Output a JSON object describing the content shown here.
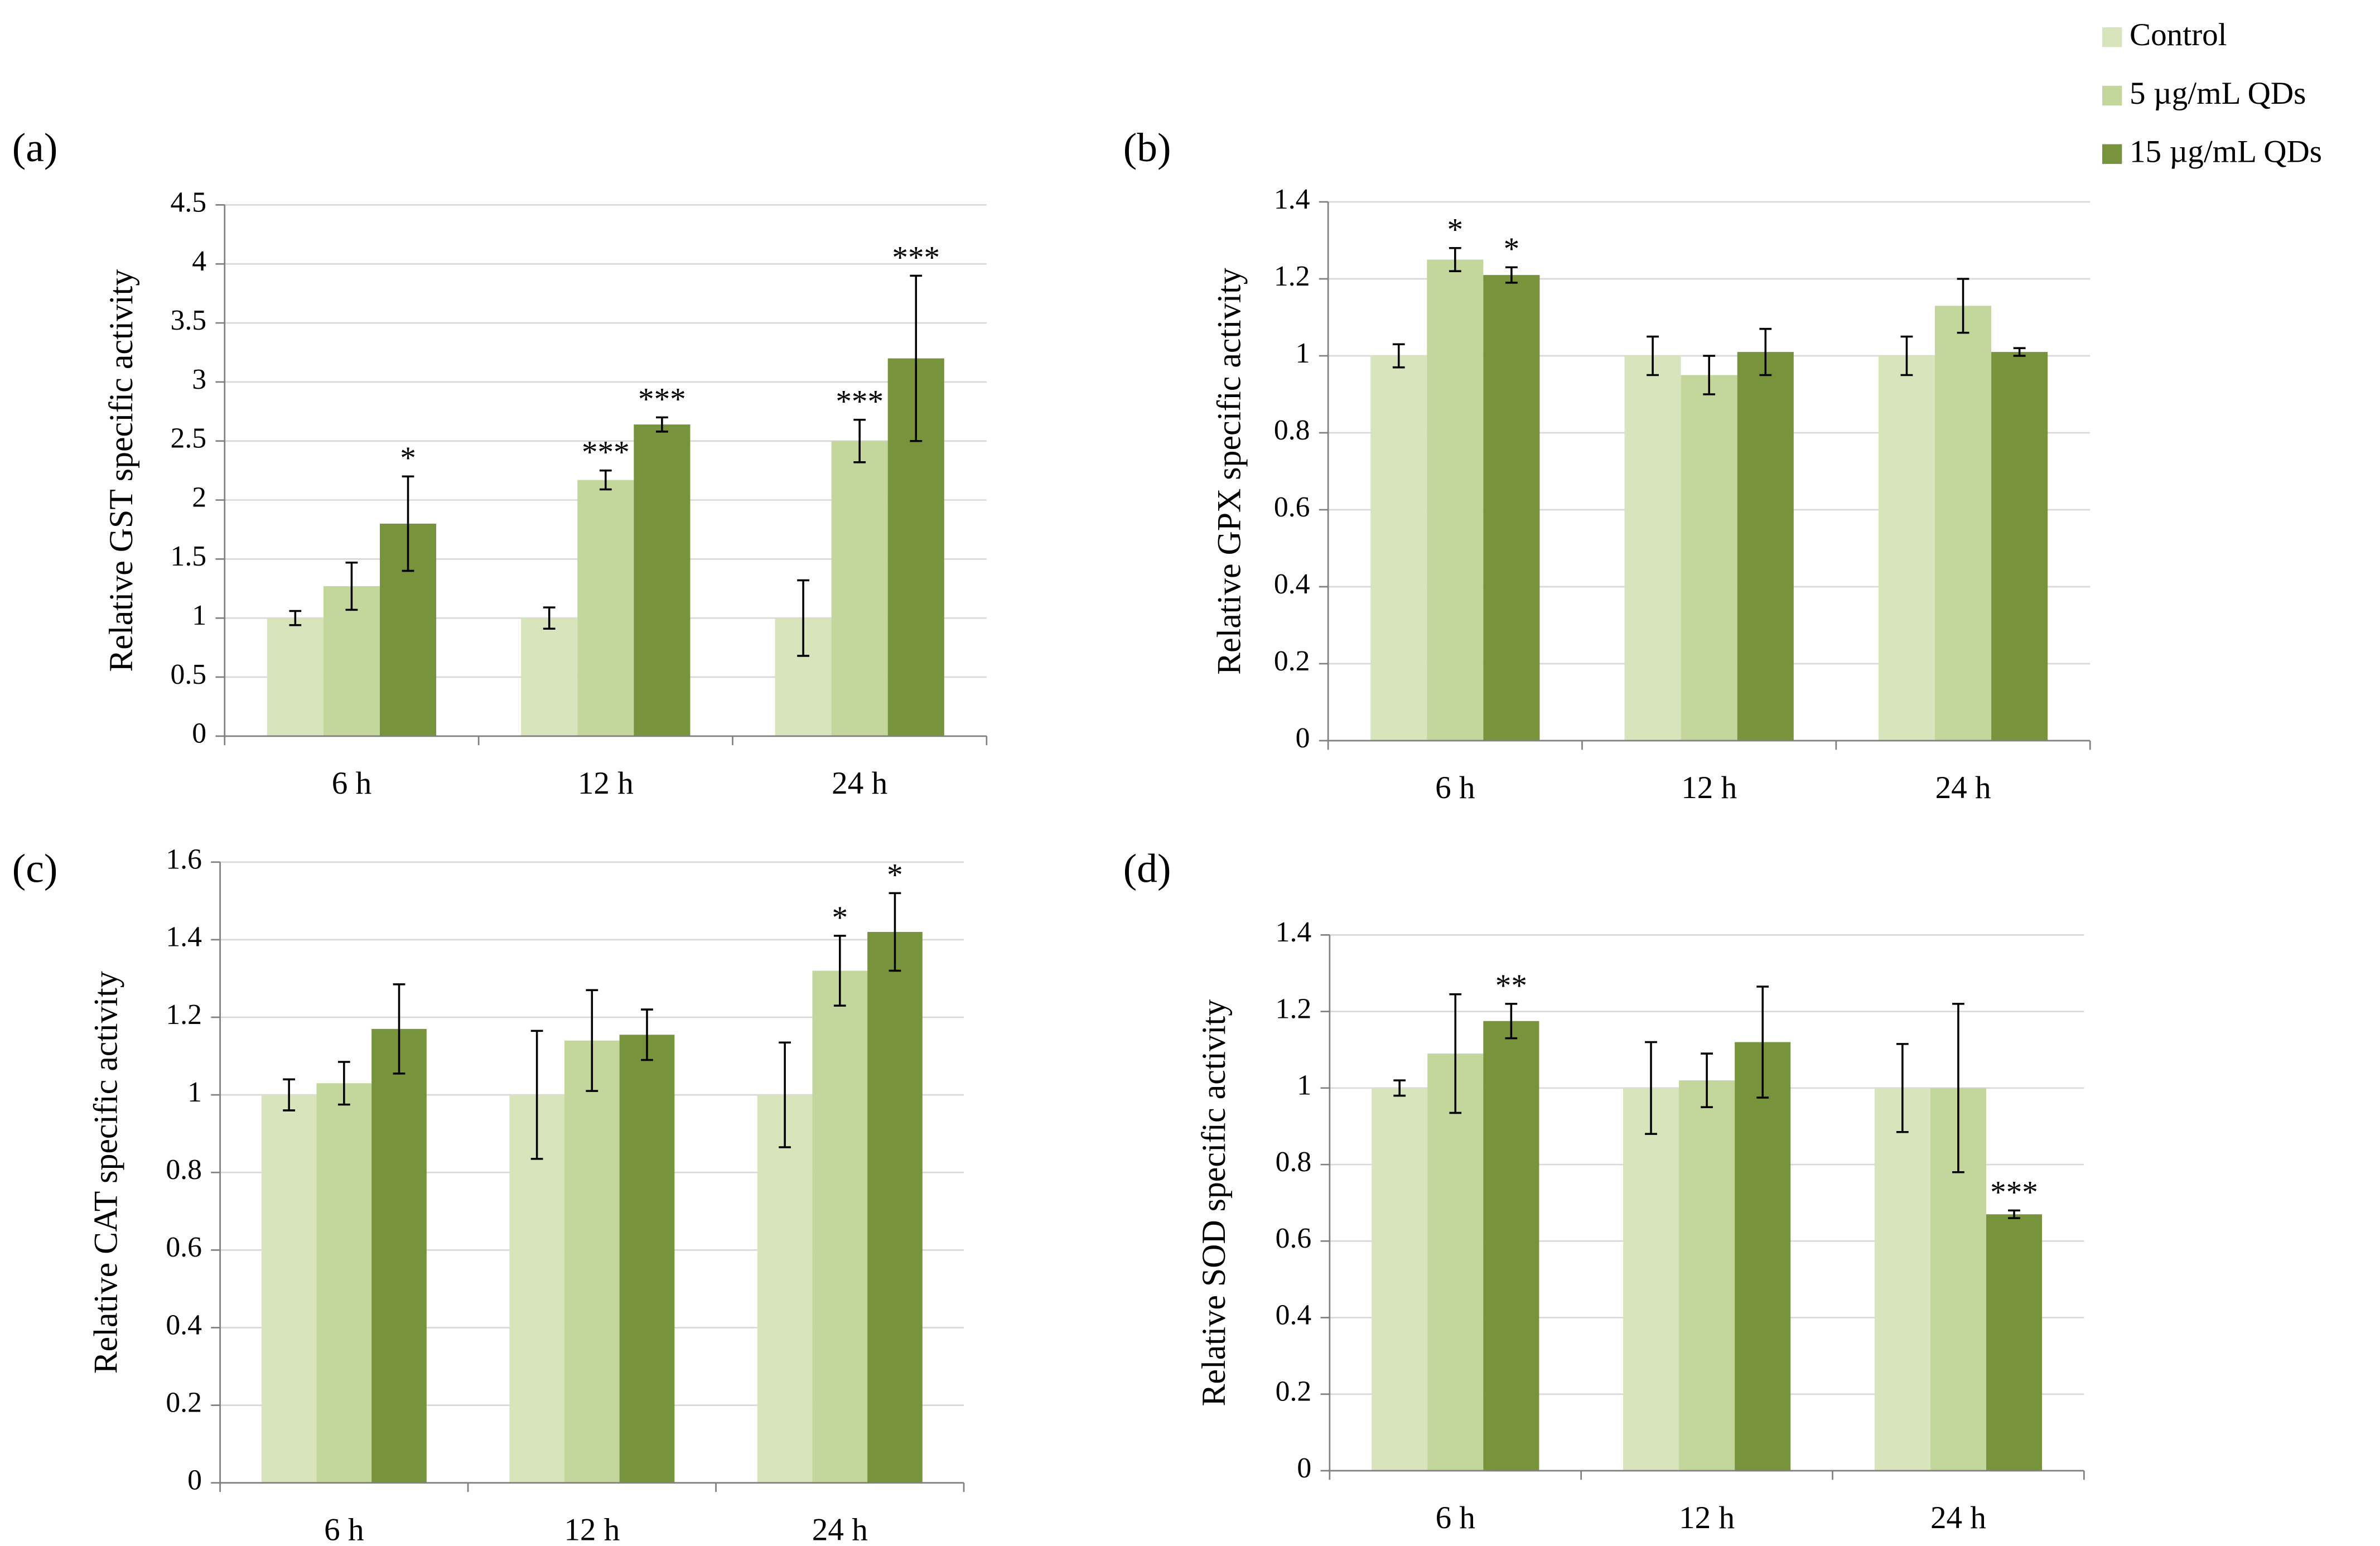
{
  "chart_data": [
    {
      "type": "bar",
      "panel": "(a)",
      "y_label": "Relative GST specific activity",
      "categories": [
        "6 h",
        "12 h",
        "24 h"
      ],
      "series": [
        {
          "name": "Control",
          "color": "#d8e4bc",
          "values": [
            1,
            1,
            1
          ],
          "errors": [
            0.06,
            0.09,
            0.32
          ],
          "significance": [
            null,
            null,
            null
          ]
        },
        {
          "name": "5 µg/mL QDs",
          "color": "#c3d69b",
          "values": [
            1.27,
            2.17,
            2.5
          ],
          "errors": [
            0.2,
            0.08,
            0.18
          ],
          "significance": [
            null,
            "***",
            "***"
          ]
        },
        {
          "name": "15 µg/mL QDs",
          "color": "#77933c",
          "values": [
            1.8,
            2.64,
            3.2
          ],
          "errors": [
            0.4,
            0.06,
            0.7
          ],
          "significance": [
            "*",
            "***",
            "***"
          ]
        }
      ],
      "ylim": [
        0,
        4.5
      ],
      "yticks": [
        0,
        0.5,
        1,
        1.5,
        2,
        2.5,
        3,
        3.5,
        4,
        4.5
      ],
      "grid": true
    },
    {
      "type": "bar",
      "panel": "(b)",
      "y_label": "Relative GPX specific activity",
      "categories": [
        "6 h",
        "12 h",
        "24 h"
      ],
      "series": [
        {
          "values": [
            1,
            1,
            1
          ],
          "errors": [
            0.03,
            0.05,
            0.05
          ],
          "significance": [
            null,
            null,
            null
          ]
        },
        {
          "values": [
            1.25,
            0.95,
            1.13
          ],
          "errors": [
            0.03,
            0.05,
            0.07
          ],
          "significance": [
            "*",
            null,
            null
          ]
        },
        {
          "values": [
            1.21,
            1.01,
            1.01
          ],
          "errors": [
            0.02,
            0.06,
            0.01
          ],
          "significance": [
            "*",
            null,
            null
          ]
        }
      ],
      "ylim": [
        0,
        1.4
      ],
      "yticks": [
        0,
        0.2,
        0.4,
        0.6,
        0.8,
        1,
        1.2,
        1.4
      ],
      "grid": true
    },
    {
      "type": "bar",
      "panel": "(c)",
      "y_label": "Relative CAT specific activity",
      "categories": [
        "6 h",
        "12 h",
        "24 h"
      ],
      "series": [
        {
          "values": [
            1,
            1,
            1
          ],
          "errors": [
            0.04,
            0.165,
            0.135
          ],
          "significance": [
            null,
            null,
            null
          ]
        },
        {
          "values": [
            1.03,
            1.14,
            1.32
          ],
          "errors": [
            0.055,
            0.13,
            0.09
          ],
          "significance": [
            null,
            null,
            "*"
          ]
        },
        {
          "values": [
            1.17,
            1.155,
            1.42
          ],
          "errors": [
            0.115,
            0.065,
            0.1
          ],
          "significance": [
            null,
            null,
            "*"
          ]
        }
      ],
      "ylim": [
        0,
        1.6
      ],
      "yticks": [
        0,
        0.2,
        0.4,
        0.6,
        0.8,
        1,
        1.2,
        1.4,
        1.6
      ],
      "grid": true
    },
    {
      "type": "bar",
      "panel": "(d)",
      "y_label": "Relative SOD specific activity",
      "categories": [
        "6 h",
        "12 h",
        "24 h"
      ],
      "series": [
        {
          "values": [
            1,
            1,
            1
          ],
          "errors": [
            0.02,
            0.12,
            0.115
          ],
          "significance": [
            null,
            null,
            null
          ]
        },
        {
          "values": [
            1.09,
            1.02,
            1.0
          ],
          "errors": [
            0.155,
            0.07,
            0.22
          ],
          "significance": [
            null,
            null,
            null
          ]
        },
        {
          "values": [
            1.175,
            1.12,
            0.67
          ],
          "errors": [
            0.045,
            0.145,
            0.01
          ],
          "significance": [
            "**",
            null,
            "***"
          ]
        }
      ],
      "ylim": [
        0,
        1.4
      ],
      "yticks": [
        0,
        0.2,
        0.4,
        0.6,
        0.8,
        1,
        1.2,
        1.4
      ],
      "grid": true
    }
  ]
}
